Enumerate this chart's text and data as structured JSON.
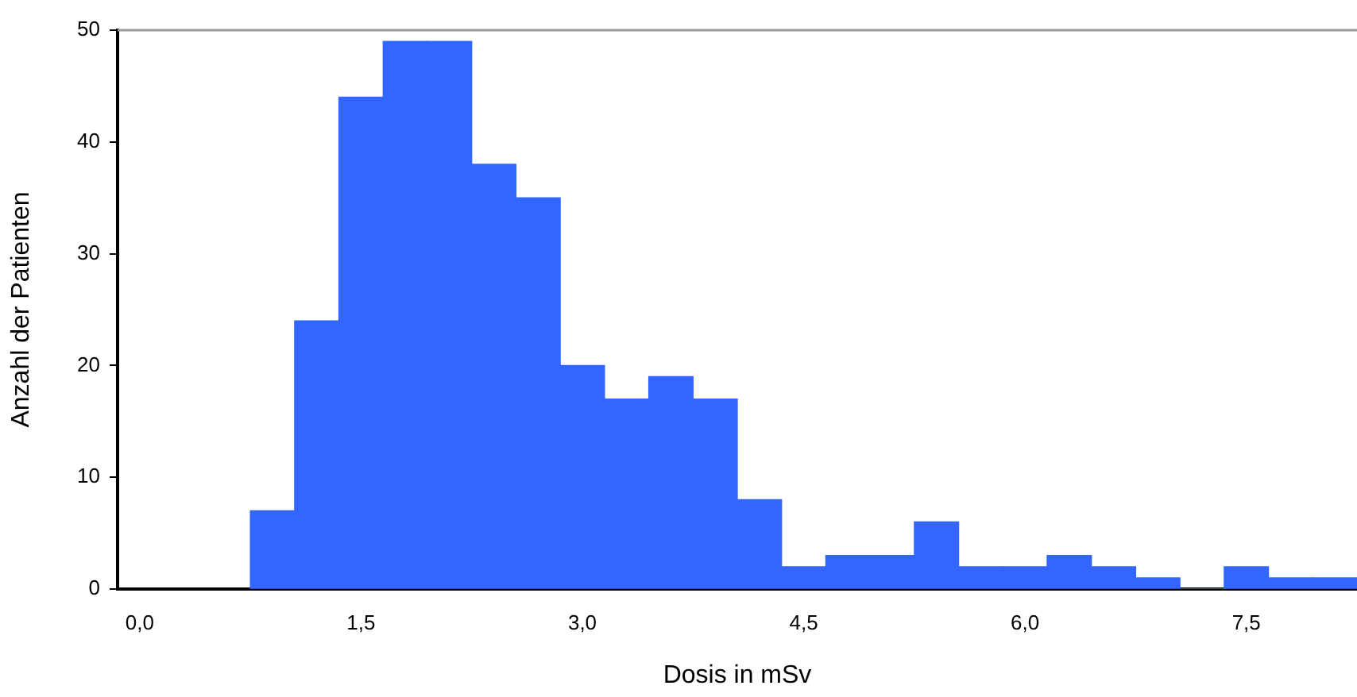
{
  "chart_data": {
    "type": "histogram",
    "xlabel": "Dosis in mSv",
    "ylabel": "Anzahl der Patienten",
    "bins": [
      0.75,
      1.05,
      1.35,
      1.65,
      1.95,
      2.25,
      2.55,
      2.85,
      3.15,
      3.45,
      3.75,
      4.05,
      4.35,
      4.65,
      4.95,
      5.25,
      5.55,
      5.85,
      6.15,
      6.45,
      6.75,
      7.05,
      7.35,
      7.65,
      7.95,
      8.25
    ],
    "values": [
      7,
      24,
      44,
      49,
      49,
      38,
      35,
      20,
      17,
      19,
      17,
      8,
      2,
      3,
      3,
      6,
      2,
      2,
      3,
      2,
      1,
      0,
      2,
      1,
      1
    ],
    "color": "#3366ff",
    "xlim": [
      -0.15,
      8.25
    ],
    "xticks": [
      {
        "value": 0,
        "label": "0,0"
      },
      {
        "value": 1.5,
        "label": "1,5"
      },
      {
        "value": 3,
        "label": "3,0"
      },
      {
        "value": 4.5,
        "label": "4,5"
      },
      {
        "value": 6,
        "label": "6,0"
      },
      {
        "value": 7.5,
        "label": "7,5"
      }
    ],
    "ylim": [
      0,
      50
    ],
    "yticks": [
      0,
      10,
      20,
      30,
      40,
      50
    ],
    "grid": false,
    "legend": false
  }
}
